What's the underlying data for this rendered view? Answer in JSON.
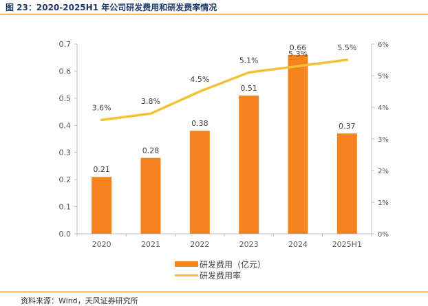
{
  "title": "图 23：2020-2025H1 年公司研发费用和研发费率情况",
  "source": "资料来源：Wind，天风证券研究所",
  "colors": {
    "bar": "#f5841f",
    "line": "#f3c136",
    "axis": "#bfbfbf",
    "accent": "#e07a1f"
  },
  "chart_data": {
    "type": "bar+line",
    "categories": [
      "2020",
      "2021",
      "2022",
      "2023",
      "2024",
      "2025H1"
    ],
    "series": [
      {
        "name": "研发费用（亿元）",
        "type": "bar",
        "axis": "left",
        "values": [
          0.21,
          0.28,
          0.38,
          0.51,
          0.66,
          0.37
        ],
        "labels": [
          "0.21",
          "0.28",
          "0.38",
          "0.51",
          "0.66",
          "0.37"
        ]
      },
      {
        "name": "研发费用率",
        "type": "line",
        "axis": "right",
        "values": [
          3.6,
          3.8,
          4.5,
          5.1,
          5.3,
          5.5
        ],
        "labels": [
          "3.6%",
          "3.8%",
          "4.5%",
          "5.1%",
          "5.3%",
          "5.5%"
        ]
      }
    ],
    "left_axis": {
      "min": 0,
      "max": 0.7,
      "ticks": [
        "0.0",
        "0.1",
        "0.2",
        "0.3",
        "0.4",
        "0.5",
        "0.6",
        "0.7"
      ]
    },
    "right_axis": {
      "min": 0,
      "max": 6,
      "ticks": [
        "0%",
        "1%",
        "2%",
        "3%",
        "4%",
        "5%",
        "6%"
      ]
    },
    "legend": [
      "研发费用（亿元）",
      "研发费用率"
    ],
    "legend_position": "bottom"
  }
}
